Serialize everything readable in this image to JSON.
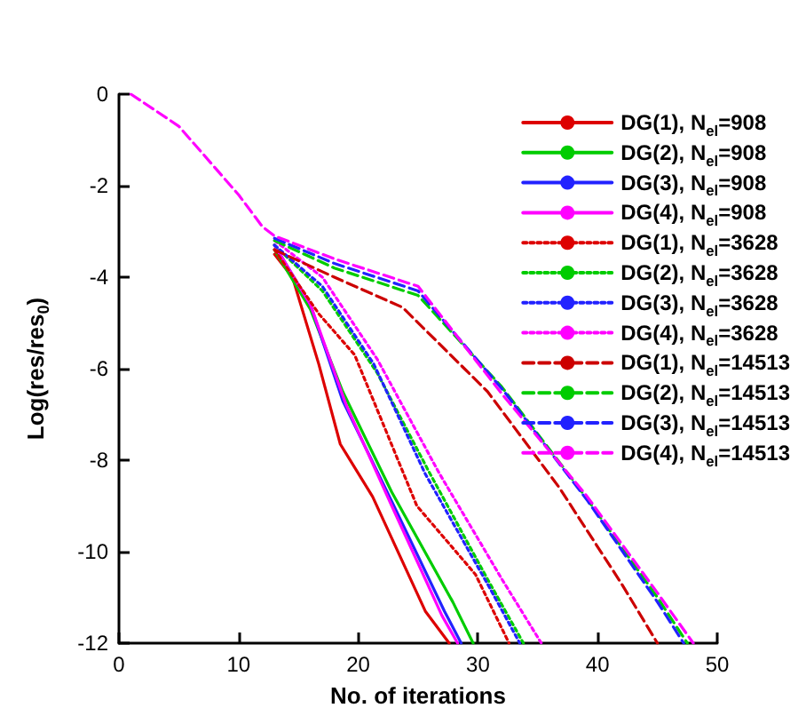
{
  "chart_data": {
    "type": "line",
    "xlabel": "No. of iterations",
    "ylabel": "Log(res/res$_{0}$)",
    "xlim": [
      0,
      50
    ],
    "ylim": [
      -12,
      0
    ],
    "xticks": [
      0,
      10,
      20,
      30,
      40,
      50
    ],
    "yticks": [
      0,
      -2,
      -4,
      -6,
      -8,
      -10,
      -12
    ],
    "grid": false,
    "legend": "top right",
    "series": [
      {
        "name": "DG(1), N$_{el}$=908",
        "color": "#dd0000",
        "line_style": "solid",
        "x": [
          13,
          14.5,
          16.7,
          18.5,
          21.2,
          25.6,
          27.6
        ],
        "values": [
          -3.5,
          -4.0,
          -5.9,
          -7.65,
          -8.8,
          -11.3,
          -12
        ]
      },
      {
        "name": "DG(2), N$_{el}$=908",
        "color": "#00cc00",
        "line_style": "solid",
        "x": [
          13,
          16,
          18.7,
          22.8,
          27.9,
          29.6
        ],
        "values": [
          -3.4,
          -4.7,
          -6.5,
          -8.7,
          -11.1,
          -12
        ]
      },
      {
        "name": "DG(3), N$_{el}$=908",
        "color": "#2222ff",
        "line_style": "solid",
        "x": [
          13,
          16,
          18.7,
          22.8,
          27.2,
          28.6
        ],
        "values": [
          -3.3,
          -4.6,
          -6.7,
          -8.9,
          -11.3,
          -12
        ]
      },
      {
        "name": "DG(4), N$_{el}$=908",
        "color": "#ff00ff",
        "line_style": "solid",
        "x": [
          13,
          16,
          19,
          22.8,
          27,
          28.3
        ],
        "values": [
          -3.3,
          -4.6,
          -6.8,
          -9.0,
          -11.4,
          -12
        ]
      },
      {
        "name": "DG(1), N$_{el}$=3628",
        "color": "#dd0000",
        "line_style": "dotted",
        "x": [
          13,
          16.7,
          19.7,
          24.9,
          29.8,
          32.6
        ],
        "values": [
          -3.4,
          -4.8,
          -5.7,
          -9.0,
          -10.5,
          -12
        ]
      },
      {
        "name": "DG(2), N$_{el}$=3628",
        "color": "#00cc00",
        "line_style": "dotted",
        "x": [
          13,
          17,
          21.6,
          25.8,
          30.8,
          33.8
        ],
        "values": [
          -3.3,
          -4.3,
          -6.1,
          -8.2,
          -10.6,
          -12
        ]
      },
      {
        "name": "DG(3), N$_{el}$=3628",
        "color": "#2222ff",
        "line_style": "dotted",
        "x": [
          13,
          17,
          21.3,
          25.6,
          31,
          33.5
        ],
        "values": [
          -3.3,
          -4.2,
          -5.9,
          -8.3,
          -10.8,
          -12
        ]
      },
      {
        "name": "DG(4), N$_{el}$=3628",
        "color": "#ff00ff",
        "line_style": "dotted",
        "x": [
          13,
          17,
          21.6,
          26.8,
          32,
          35.3
        ],
        "values": [
          -3.2,
          -4.0,
          -5.8,
          -8.3,
          -10.6,
          -12
        ]
      },
      {
        "name": "DG(1), N$_{el}$=14513",
        "color": "#cc0000",
        "line_style": "dashed",
        "x": [
          13,
          18,
          23.7,
          30.8,
          36.8,
          42,
          45
        ],
        "values": [
          -3.4,
          -4.0,
          -4.66,
          -6.5,
          -8.6,
          -10.7,
          -12
        ]
      },
      {
        "name": "DG(2), N$_{el}$=14513",
        "color": "#00cc00",
        "line_style": "dashed",
        "x": [
          13,
          18,
          25,
          32,
          39,
          45,
          47.5
        ],
        "values": [
          -3.2,
          -3.8,
          -4.4,
          -6.4,
          -8.8,
          -11.0,
          -12
        ]
      },
      {
        "name": "DG(3), N$_{el}$=14513",
        "color": "#2222ff",
        "line_style": "dashed",
        "x": [
          13,
          18,
          25,
          32.2,
          39.2,
          45,
          47.2
        ],
        "values": [
          -3.15,
          -3.7,
          -4.3,
          -6.5,
          -8.9,
          -11.1,
          -12
        ]
      },
      {
        "name": "DG(4), N$_{el}$=14513",
        "color": "#ff00ff",
        "line_style": "dashed",
        "x": [
          1,
          5,
          8,
          10,
          12,
          13,
          18,
          25,
          32,
          39,
          45,
          48
        ],
        "values": [
          0,
          -0.7,
          -1.6,
          -2.2,
          -2.9,
          -3.1,
          -3.6,
          -4.2,
          -6.55,
          -8.75,
          -10.9,
          -12
        ]
      }
    ]
  }
}
